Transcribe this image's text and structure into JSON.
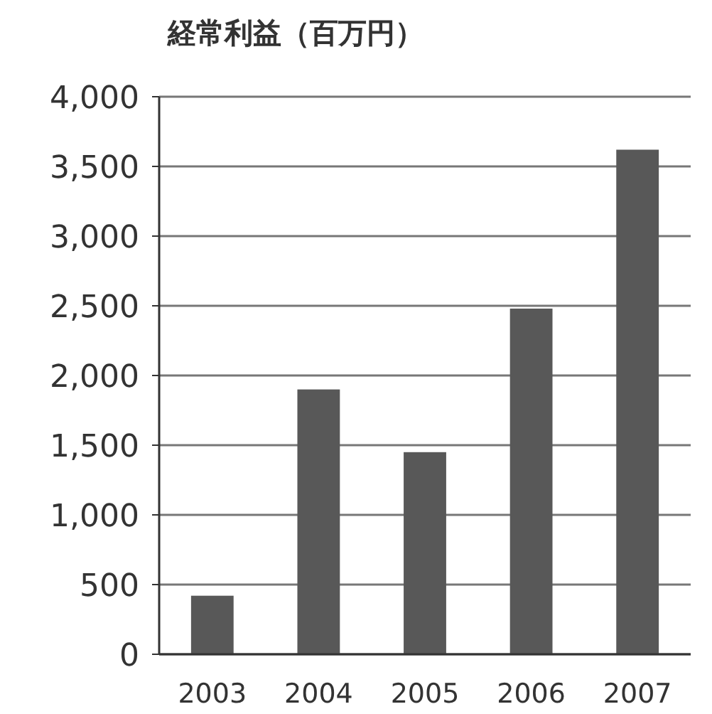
{
  "chart_data": {
    "type": "bar",
    "title": "経常利益（百万円）",
    "categories": [
      "2003",
      "2004",
      "2005",
      "2006",
      "2007"
    ],
    "values": [
      420,
      1900,
      1450,
      2480,
      3620
    ],
    "color": "#585858",
    "ylim": [
      0,
      4000
    ],
    "yticks": [
      0,
      {
        "value": 500,
        "label": "500"
      },
      {
        "value": 1000,
        "label": "1,000"
      },
      {
        "value": 1500,
        "label": "1,500"
      },
      {
        "value": 2000,
        "label": "2,000"
      },
      {
        "value": 2500,
        "label": "2,500"
      },
      {
        "value": 3000,
        "label": "3,000"
      },
      {
        "value": 3500,
        "label": "3,500"
      },
      {
        "value": 4000,
        "label": "4,000"
      }
    ],
    "grid": "y"
  }
}
